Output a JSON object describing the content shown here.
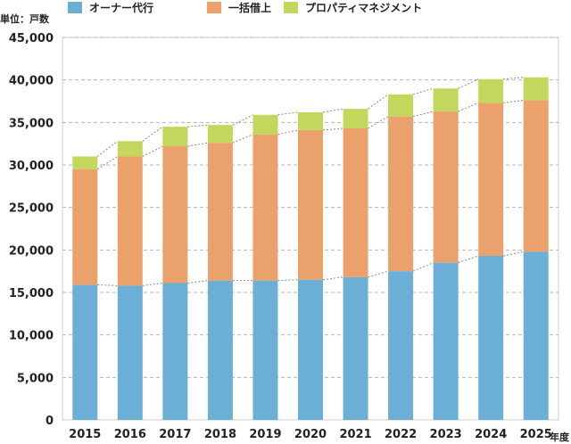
{
  "chart_data": {
    "type": "bar",
    "stacked": true,
    "categories": [
      "2015",
      "2016",
      "2017",
      "2018",
      "2019",
      "2020",
      "2021",
      "2022",
      "2023",
      "2024",
      "2025"
    ],
    "series": [
      {
        "name": "オーナー代行",
        "color": "#6baed6",
        "values": [
          15900,
          15800,
          16100,
          16400,
          16400,
          16500,
          16800,
          17500,
          18500,
          19300,
          19800
        ]
      },
      {
        "name": "一括借上",
        "color": "#eba16b",
        "values": [
          13600,
          15200,
          16100,
          16200,
          17200,
          17600,
          17500,
          18200,
          17800,
          18000,
          17800
        ]
      },
      {
        "name": "プロパティマネジメント",
        "color": "#c4d75d",
        "values": [
          1500,
          1800,
          2300,
          2100,
          2300,
          2100,
          2300,
          2600,
          2700,
          2800,
          2700
        ]
      }
    ],
    "ylabel": "単位：戸数",
    "xlabel": "年度",
    "ylim": [
      0,
      45000
    ],
    "yticks": [
      "0",
      "5,000",
      "10,000",
      "15,000",
      "20,000",
      "25,000",
      "30,000",
      "35,000",
      "40,000",
      "45,000"
    ],
    "grid": true,
    "legend": "top",
    "series_lines": "dotted connectors between bar segment tops"
  }
}
